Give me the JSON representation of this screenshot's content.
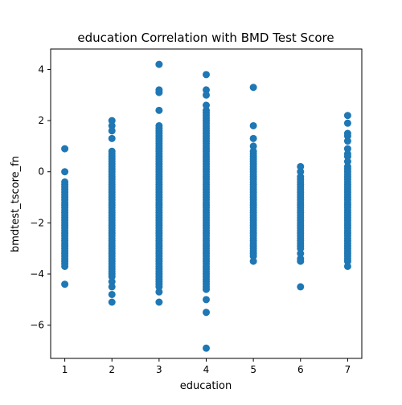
{
  "chart_data": {
    "type": "scatter",
    "title": "education Correlation with BMD Test Score",
    "xlabel": "education",
    "ylabel": "bmdtest_tscore_fn",
    "xlim": [
      0.7,
      7.3
    ],
    "ylim": [
      -7.3,
      4.8
    ],
    "xticks": [
      1,
      2,
      3,
      4,
      5,
      6,
      7
    ],
    "yticks": [
      -6,
      -4,
      -2,
      0,
      2,
      4
    ],
    "ytick_labels": [
      "−6",
      "−4",
      "−2",
      "0",
      "2",
      "4"
    ],
    "grid": false,
    "marker_color": "#1f77b4",
    "series": [
      {
        "points": [
          {
            "x": 1,
            "ys": [
              0.9,
              0.0,
              -0.4,
              -0.5,
              -0.6,
              -0.7,
              -0.8,
              -0.9,
              -1.0,
              -1.1,
              -1.2,
              -1.3,
              -1.4,
              -1.5,
              -1.6,
              -1.7,
              -1.8,
              -1.9,
              -2.0,
              -2.1,
              -2.2,
              -2.3,
              -2.4,
              -2.5,
              -2.6,
              -2.7,
              -2.8,
              -2.9,
              -3.0,
              -3.1,
              -3.2,
              -3.3,
              -3.4,
              -3.5,
              -3.6,
              -3.7,
              -4.4
            ]
          },
          {
            "x": 2,
            "ys": [
              2.0,
              1.8,
              1.6,
              1.3,
              0.8,
              0.7,
              0.6,
              0.5,
              0.4,
              0.3,
              0.2,
              0.1,
              0.0,
              -0.1,
              -0.2,
              -0.3,
              -0.4,
              -0.5,
              -0.6,
              -0.7,
              -0.8,
              -0.9,
              -1.0,
              -1.1,
              -1.2,
              -1.3,
              -1.4,
              -1.5,
              -1.6,
              -1.7,
              -1.8,
              -1.9,
              -2.0,
              -2.1,
              -2.2,
              -2.3,
              -2.4,
              -2.5,
              -2.6,
              -2.7,
              -2.8,
              -2.9,
              -3.0,
              -3.1,
              -3.2,
              -3.3,
              -3.4,
              -3.5,
              -3.6,
              -3.7,
              -3.8,
              -3.9,
              -4.0,
              -4.1,
              -4.3,
              -4.5,
              -4.8,
              -5.1
            ]
          },
          {
            "x": 3,
            "ys": [
              4.2,
              3.2,
              3.1,
              2.4,
              1.8,
              1.7,
              1.6,
              1.5,
              1.4,
              1.3,
              1.2,
              1.1,
              1.0,
              0.9,
              0.8,
              0.7,
              0.6,
              0.5,
              0.4,
              0.3,
              0.2,
              0.1,
              0.0,
              -0.1,
              -0.2,
              -0.3,
              -0.4,
              -0.5,
              -0.6,
              -0.7,
              -0.8,
              -0.9,
              -1.0,
              -1.1,
              -1.2,
              -1.3,
              -1.4,
              -1.5,
              -1.6,
              -1.7,
              -1.8,
              -1.9,
              -2.0,
              -2.1,
              -2.2,
              -2.3,
              -2.4,
              -2.5,
              -2.6,
              -2.7,
              -2.8,
              -2.9,
              -3.0,
              -3.1,
              -3.2,
              -3.3,
              -3.4,
              -3.5,
              -3.6,
              -3.7,
              -3.8,
              -3.9,
              -4.0,
              -4.1,
              -4.2,
              -4.3,
              -4.4,
              -4.5,
              -4.7,
              -5.1
            ]
          },
          {
            "x": 4,
            "ys": [
              3.8,
              3.2,
              3.0,
              2.6,
              2.4,
              2.3,
              2.2,
              2.1,
              2.0,
              1.9,
              1.8,
              1.7,
              1.6,
              1.5,
              1.4,
              1.3,
              1.2,
              1.1,
              1.0,
              0.9,
              0.8,
              0.7,
              0.6,
              0.5,
              0.4,
              0.3,
              0.2,
              0.1,
              0.0,
              -0.1,
              -0.2,
              -0.3,
              -0.4,
              -0.5,
              -0.6,
              -0.7,
              -0.8,
              -0.9,
              -1.0,
              -1.1,
              -1.2,
              -1.3,
              -1.4,
              -1.5,
              -1.6,
              -1.7,
              -1.8,
              -1.9,
              -2.0,
              -2.1,
              -2.2,
              -2.3,
              -2.4,
              -2.5,
              -2.6,
              -2.7,
              -2.8,
              -2.9,
              -3.0,
              -3.1,
              -3.2,
              -3.3,
              -3.4,
              -3.5,
              -3.6,
              -3.7,
              -3.8,
              -3.9,
              -4.0,
              -4.1,
              -4.2,
              -4.3,
              -4.4,
              -4.5,
              -4.6,
              -5.0,
              -5.5,
              -6.9
            ]
          },
          {
            "x": 5,
            "ys": [
              3.3,
              1.8,
              1.3,
              1.0,
              0.8,
              0.7,
              0.6,
              0.5,
              0.4,
              0.3,
              0.2,
              0.1,
              0.0,
              -0.1,
              -0.2,
              -0.3,
              -0.4,
              -0.5,
              -0.6,
              -0.7,
              -0.8,
              -0.9,
              -1.0,
              -1.1,
              -1.2,
              -1.3,
              -1.4,
              -1.5,
              -1.6,
              -1.7,
              -1.8,
              -1.9,
              -2.0,
              -2.1,
              -2.2,
              -2.3,
              -2.4,
              -2.5,
              -2.6,
              -2.7,
              -2.8,
              -2.9,
              -3.0,
              -3.1,
              -3.2,
              -3.3,
              -3.5
            ]
          },
          {
            "x": 6,
            "ys": [
              0.2,
              0.0,
              -0.2,
              -0.3,
              -0.4,
              -0.5,
              -0.6,
              -0.7,
              -0.8,
              -0.9,
              -1.0,
              -1.1,
              -1.2,
              -1.3,
              -1.4,
              -1.5,
              -1.6,
              -1.7,
              -1.8,
              -1.9,
              -2.0,
              -2.1,
              -2.2,
              -2.3,
              -2.4,
              -2.5,
              -2.6,
              -2.7,
              -2.8,
              -2.9,
              -3.0,
              -3.2,
              -3.4,
              -3.5,
              -4.5
            ]
          },
          {
            "x": 7,
            "ys": [
              2.2,
              1.9,
              1.5,
              1.4,
              1.2,
              0.9,
              0.7,
              0.6,
              0.4,
              0.2,
              0.1,
              0.0,
              -0.1,
              -0.2,
              -0.3,
              -0.4,
              -0.5,
              -0.6,
              -0.7,
              -0.8,
              -0.9,
              -1.0,
              -1.1,
              -1.2,
              -1.3,
              -1.4,
              -1.5,
              -1.6,
              -1.7,
              -1.8,
              -1.9,
              -2.0,
              -2.1,
              -2.2,
              -2.3,
              -2.4,
              -2.5,
              -2.6,
              -2.7,
              -2.8,
              -2.9,
              -3.0,
              -3.1,
              -3.2,
              -3.3,
              -3.4,
              -3.5,
              -3.7
            ]
          }
        ]
      }
    ]
  }
}
